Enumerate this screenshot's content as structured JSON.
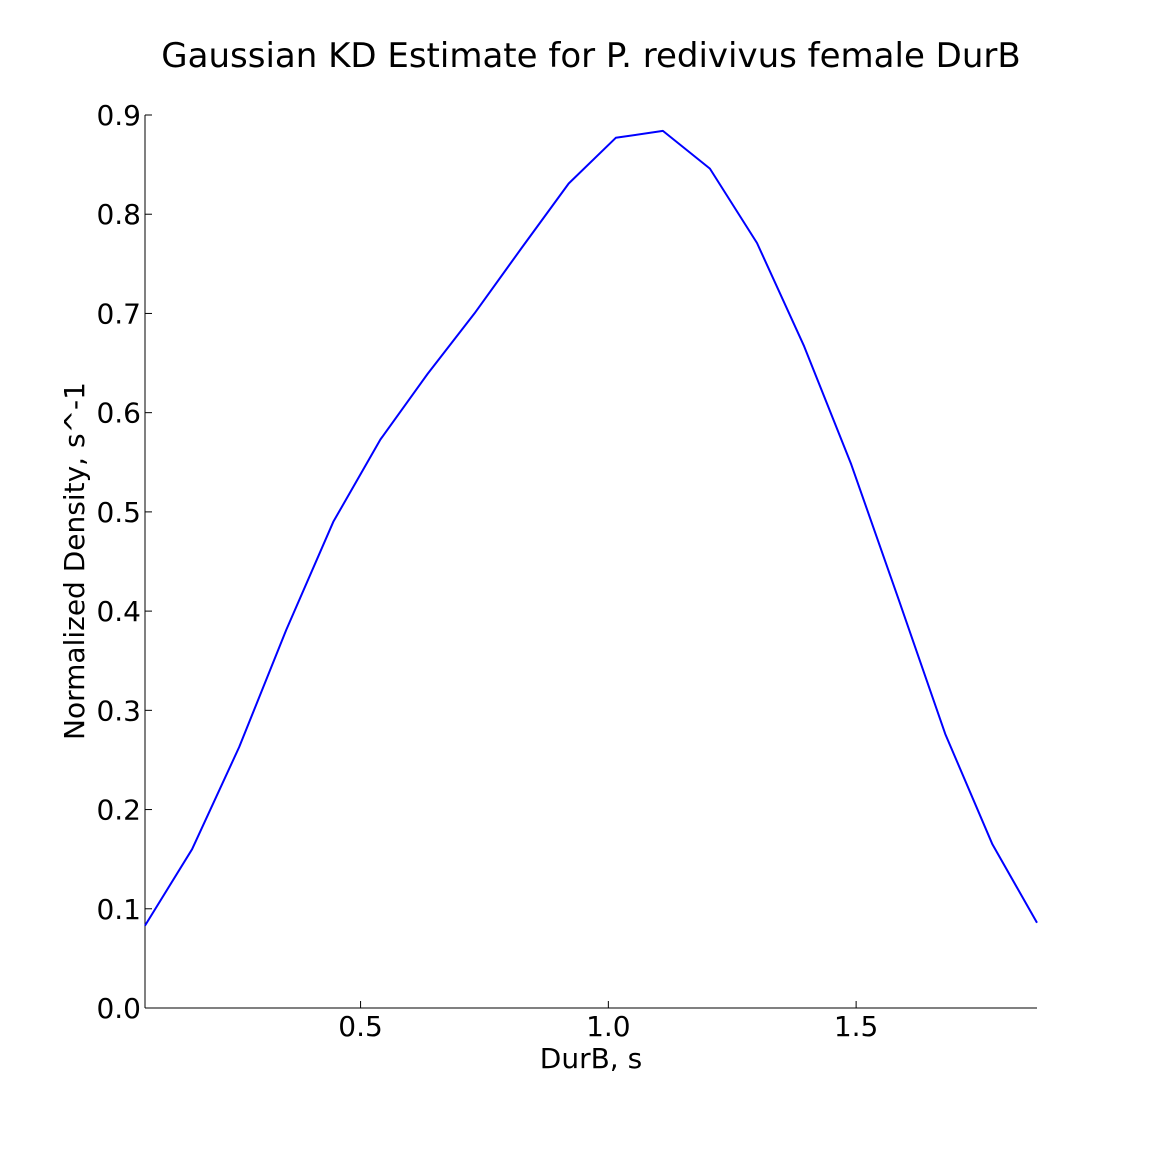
{
  "chart_data": {
    "type": "line",
    "title": "Gaussian KD Estimate for P. redivivus female DurB",
    "xlabel": "DurB, s",
    "ylabel": "Normalized Density, s^-1",
    "xlim": [
      0.065,
      1.865
    ],
    "ylim": [
      0.0,
      0.9
    ],
    "xticks": [
      0.5,
      1.0,
      1.5
    ],
    "xtick_labels": [
      "0.5",
      "1.0",
      "1.5"
    ],
    "yticks": [
      0.0,
      0.1,
      0.2,
      0.3,
      0.4,
      0.5,
      0.6,
      0.7,
      0.8,
      0.9
    ],
    "ytick_labels": [
      "0.0",
      "0.1",
      "0.2",
      "0.3",
      "0.4",
      "0.5",
      "0.6",
      "0.7",
      "0.8",
      "0.9"
    ],
    "grid": false,
    "legend": "none",
    "series": [
      {
        "color": "#0000ff",
        "x": [
          0.065,
          0.16,
          0.255,
          0.35,
          0.445,
          0.54,
          0.635,
          0.73,
          0.825,
          0.92,
          1.015,
          1.11,
          1.205,
          1.3,
          1.395,
          1.49,
          1.585,
          1.68,
          1.775,
          1.865
        ],
        "y": [
          0.083,
          0.16,
          0.263,
          0.381,
          0.49,
          0.573,
          0.639,
          0.7,
          0.766,
          0.831,
          0.877,
          0.884,
          0.846,
          0.771,
          0.667,
          0.548,
          0.413,
          0.276,
          0.165,
          0.086
        ]
      }
    ]
  }
}
